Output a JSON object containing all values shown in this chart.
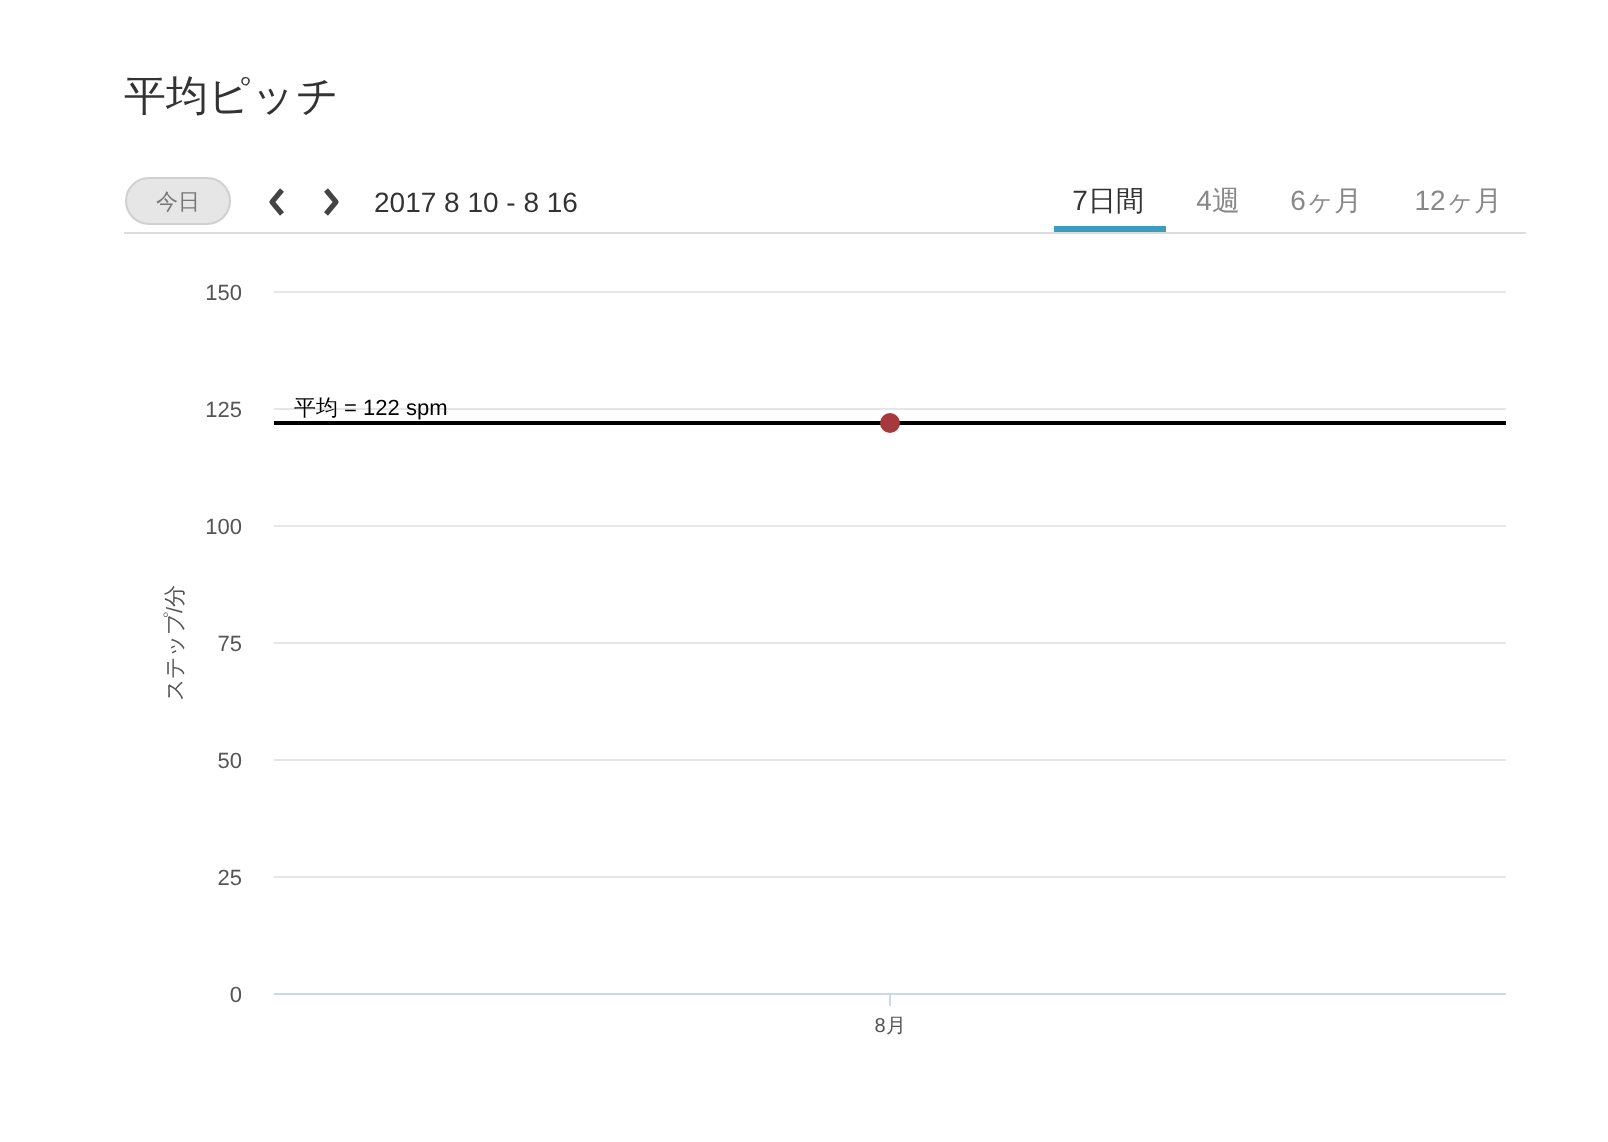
{
  "chart_data": {
    "type": "scatter",
    "title": "平均ピッチ",
    "subtitle": "2017 8 10 - 8 16",
    "ylabel": "ステップ/分",
    "categories": [
      "8月"
    ],
    "series": [
      {
        "color": "#a5393b",
        "values": [
          122
        ]
      }
    ],
    "ylim": [
      0,
      150
    ],
    "yticks": [
      0,
      25,
      50,
      75,
      100,
      125,
      150
    ],
    "grid": "y",
    "marker": "circle",
    "ref_lines": [
      {
        "axis": "y",
        "value": 122,
        "label": "平均 = 122 spm",
        "color": "#000000",
        "line_style": "solid"
      }
    ],
    "annotations": [
      "今日",
      "7日間",
      "4週",
      "6ヶ月",
      "12ヶ月"
    ]
  }
}
